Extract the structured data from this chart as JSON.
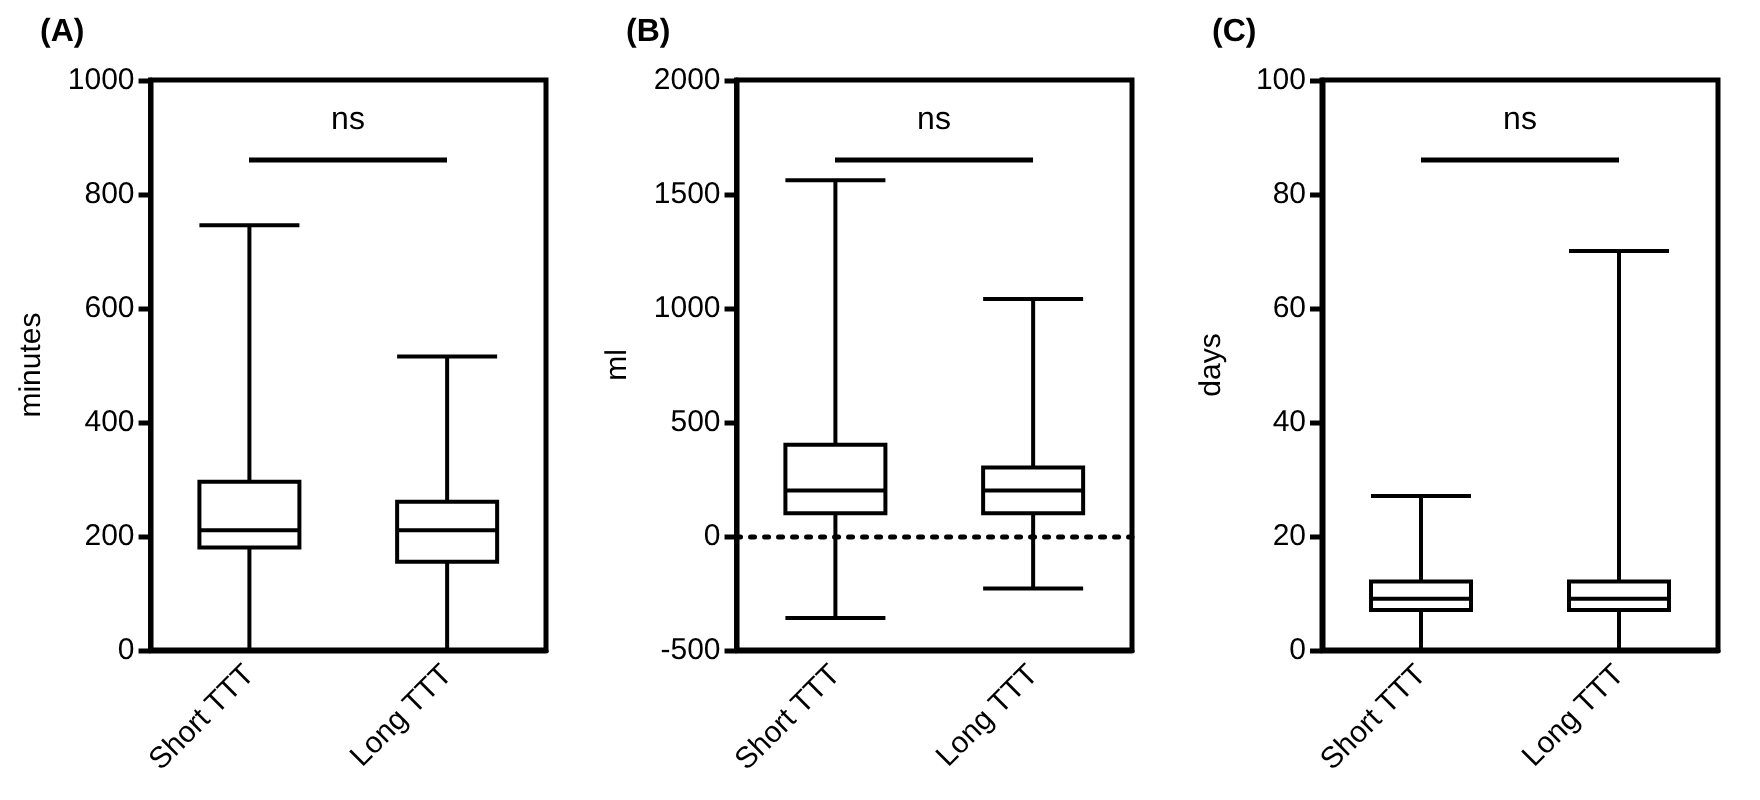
{
  "chart_data": [
    {
      "type": "box",
      "title": "(A)",
      "ylabel": "minutes",
      "categories": [
        "Short TTT",
        "Long TTT"
      ],
      "color": "#000000",
      "ylim": [
        0,
        1000
      ],
      "yticks": [
        0,
        200,
        400,
        600,
        800,
        1000
      ],
      "annotations": [
        "ns"
      ],
      "boxes": [
        {
          "low": 0,
          "q1": 180,
          "median": 210,
          "q3": 295,
          "high": 745
        },
        {
          "low": 0,
          "q1": 155,
          "median": 210,
          "q3": 260,
          "high": 515
        }
      ]
    },
    {
      "type": "box",
      "title": "(B)",
      "ylabel": "ml",
      "categories": [
        "Short TTT",
        "Long TTT"
      ],
      "color": "#000000",
      "ylim": [
        -500,
        2000
      ],
      "yticks": [
        -500,
        0,
        500,
        1000,
        1500,
        2000
      ],
      "annotations": [
        "ns"
      ],
      "ref_lines": [
        {
          "axis": "y",
          "value": 0,
          "color": "#000000",
          "line_style": "dotted"
        }
      ],
      "boxes": [
        {
          "low": -360,
          "q1": 100,
          "median": 200,
          "q3": 400,
          "high": 1560
        },
        {
          "low": -230,
          "q1": 100,
          "median": 200,
          "q3": 300,
          "high": 1040
        }
      ]
    },
    {
      "type": "box",
      "title": "(C)",
      "ylabel": "days",
      "categories": [
        "Short TTT",
        "Long TTT"
      ],
      "color": "#000000",
      "ylim": [
        0,
        100
      ],
      "yticks": [
        0,
        20,
        40,
        60,
        80,
        100
      ],
      "annotations": [
        "ns"
      ],
      "boxes": [
        {
          "low": 0,
          "q1": 7,
          "median": 9,
          "q3": 12,
          "high": 27
        },
        {
          "low": 0,
          "q1": 7,
          "median": 9,
          "q3": 12,
          "high": 70
        }
      ]
    }
  ]
}
